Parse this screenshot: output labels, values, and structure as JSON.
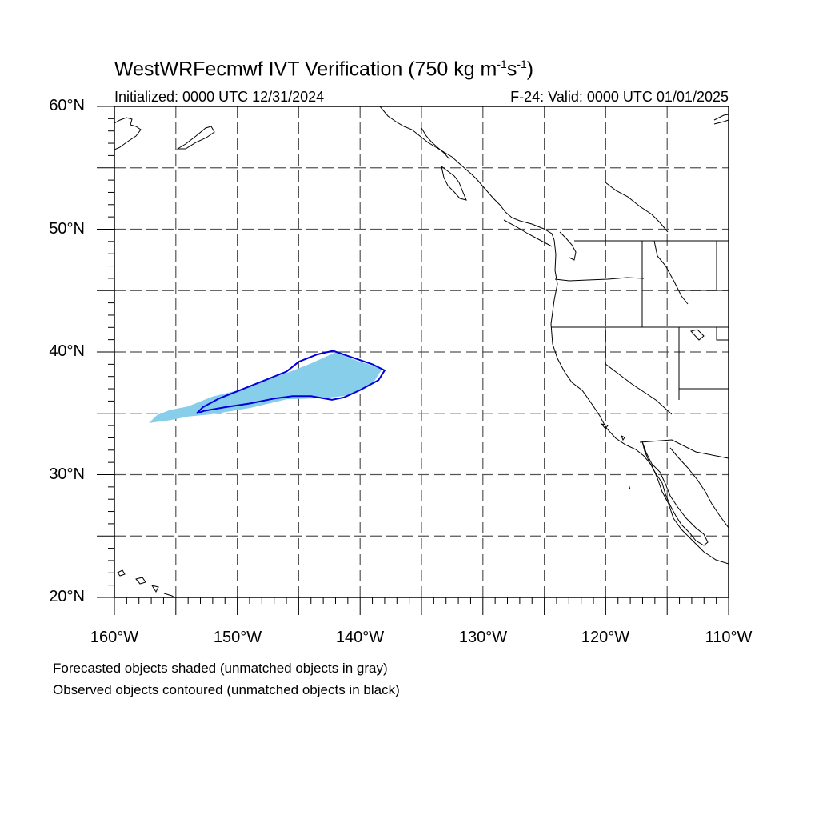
{
  "title": {
    "prefix": "WestWRFecmwf IVT Verification (750 kg m",
    "exp1": "-1",
    "mid": "s",
    "exp2": "-1",
    "suffix": ")"
  },
  "initialized": "Initialized: 0000 UTC 12/31/2024",
  "valid": "F-24: Valid: 0000 UTC 01/01/2025",
  "lat_labels": [
    "60°N",
    "50°N",
    "40°N",
    "30°N",
    "20°N"
  ],
  "lon_labels": [
    "160°W",
    "150°W",
    "140°W",
    "130°W",
    "120°W",
    "110°W"
  ],
  "captions": [
    "Forecasted objects shaded (unmatched objects in gray)",
    "Observed objects contoured (unmatched objects in black)"
  ],
  "map": {
    "lon_range": [
      -160,
      -110
    ],
    "lat_range": [
      20,
      60
    ],
    "grid_interval_deg": 5,
    "forecast_fill_color": "#87CEEB",
    "observed_contour_color": "#0000DD",
    "forecast_object": [
      [
        -157,
        34.3
      ],
      [
        -156.5,
        34.8
      ],
      [
        -155.5,
        35.2
      ],
      [
        -154,
        35.5
      ],
      [
        -152,
        36.3
      ],
      [
        -150,
        36.8
      ],
      [
        -148,
        37.5
      ],
      [
        -146,
        38.2
      ],
      [
        -144,
        39.0
      ],
      [
        -142,
        39.9
      ],
      [
        -140.5,
        39.3
      ],
      [
        -138.3,
        38.6
      ],
      [
        -139,
        37.5
      ],
      [
        -141,
        36.5
      ],
      [
        -143,
        36.3
      ],
      [
        -146,
        36.2
      ],
      [
        -149,
        35.5
      ],
      [
        -152,
        35.0
      ],
      [
        -154,
        34.8
      ],
      [
        -155.5,
        34.5
      ]
    ],
    "observed_object": [
      [
        -153.3,
        35.0
      ],
      [
        -152.8,
        35.5
      ],
      [
        -151.5,
        36.2
      ],
      [
        -149.5,
        37.0
      ],
      [
        -147.5,
        37.8
      ],
      [
        -146,
        38.4
      ],
      [
        -145,
        39.2
      ],
      [
        -143.5,
        39.8
      ],
      [
        -142.2,
        40.1
      ],
      [
        -140.8,
        39.6
      ],
      [
        -139,
        39.0
      ],
      [
        -138,
        38.5
      ],
      [
        -138.5,
        37.7
      ],
      [
        -140,
        36.9
      ],
      [
        -141.3,
        36.3
      ],
      [
        -142.3,
        36.1
      ],
      [
        -144,
        36.4
      ],
      [
        -145.5,
        36.4
      ],
      [
        -147,
        36.2
      ],
      [
        -149,
        35.8
      ],
      [
        -151,
        35.5
      ],
      [
        -152.7,
        35.2
      ]
    ]
  }
}
